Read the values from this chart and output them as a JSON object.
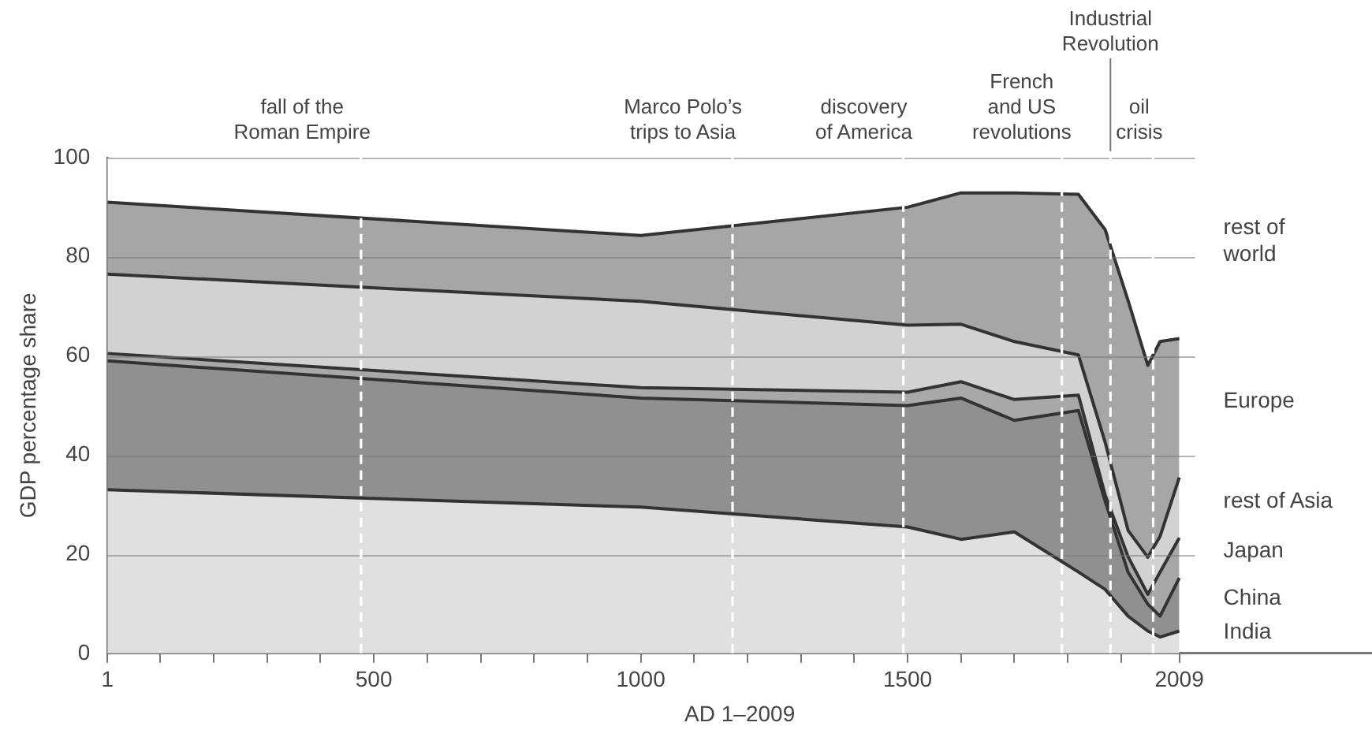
{
  "chart_data": {
    "type": "area",
    "stacked": true,
    "xlabel": "AD 1–2009",
    "ylabel": "GDP percentage share",
    "x": [
      1,
      1000,
      1500,
      1600,
      1700,
      1820,
      1870,
      1913,
      1950,
      1973,
      2009
    ],
    "series": [
      {
        "name": "India",
        "color": "#e0e0e0",
        "values": [
          33,
          29.5,
          25.5,
          23,
          24.5,
          16.4,
          12.9,
          7.5,
          4.5,
          3.3,
          4.5
        ]
      },
      {
        "name": "China",
        "color": "#909090",
        "values": [
          26,
          22,
          24.5,
          28.5,
          22.5,
          32.6,
          17.8,
          8.9,
          5.4,
          4.2,
          10.7
        ]
      },
      {
        "name": "Japan",
        "color": "#a8a8a8",
        "values": [
          1.5,
          2.1,
          2.7,
          3.3,
          4.2,
          3.1,
          1.3,
          3.1,
          2,
          8.9,
          8.1
        ]
      },
      {
        "name": "rest of Asia",
        "color": "#d2d2d2",
        "values": [
          16,
          17.4,
          13.5,
          11.6,
          11.7,
          8.1,
          10.6,
          5.3,
          7.5,
          7.2,
          12.2
        ]
      },
      {
        "name": "Europe",
        "color": "#a6a6a6",
        "values": [
          14.5,
          13.3,
          23.8,
          26.5,
          30,
          32.4,
          42.9,
          46.4,
          38.7,
          39.3,
          28
        ]
      },
      {
        "name": "rest of\nworld",
        "color": "#ffffff",
        "values": [
          9,
          15.7,
          10,
          7.1,
          7.1,
          7.4,
          14.5,
          28.8,
          41.9,
          37.1,
          36.5
        ]
      }
    ],
    "xlim": [
      1,
      2370
    ],
    "xticks": [
      1,
      {
        "value": 100,
        "label": null
      },
      {
        "value": 200,
        "label": null
      },
      {
        "value": 300,
        "label": null
      },
      {
        "value": 400,
        "label": null
      },
      500,
      {
        "value": 600,
        "label": null
      },
      {
        "value": 700,
        "label": null
      },
      {
        "value": 800,
        "label": null
      },
      {
        "value": 900,
        "label": null
      },
      1000,
      {
        "value": 1100,
        "label": null
      },
      {
        "value": 1200,
        "label": null
      },
      {
        "value": 1300,
        "label": null
      },
      {
        "value": 1400,
        "label": null
      },
      1500,
      {
        "value": 1600,
        "label": null
      },
      {
        "value": 1700,
        "label": null
      },
      {
        "value": 1800,
        "label": null
      },
      {
        "value": 1900,
        "label": null
      },
      2009
    ],
    "ylim": [
      0,
      100
    ],
    "yticks": [
      0,
      20,
      40,
      60,
      80,
      100
    ],
    "grid": "y",
    "legend": false,
    "ref_lines": [
      {
        "axis": "x",
        "value": 476,
        "label": "fall of the\nRoman Empire",
        "color": "#ffffff",
        "line_style": "dashed"
      },
      {
        "axis": "x",
        "value": 1172,
        "label": "Marco Polo’s\ntrips to Asia",
        "color": "#ffffff",
        "line_style": "dashed"
      },
      {
        "axis": "x",
        "value": 1492,
        "label": "discovery\nof America",
        "color": "#ffffff",
        "line_style": "dashed"
      },
      {
        "axis": "x",
        "value": 1789,
        "label": "French\nand US\nrevolutions",
        "color": "#ffffff",
        "line_style": "dashed"
      },
      {
        "axis": "x",
        "value": 1880,
        "label": "Industrial\nRevolution",
        "color": "#ffffff",
        "line_style": "dashed"
      },
      {
        "axis": "x",
        "value": 1960,
        "label": "oil\ncrisis",
        "color": "#ffffff",
        "line_style": "dashed"
      }
    ]
  }
}
